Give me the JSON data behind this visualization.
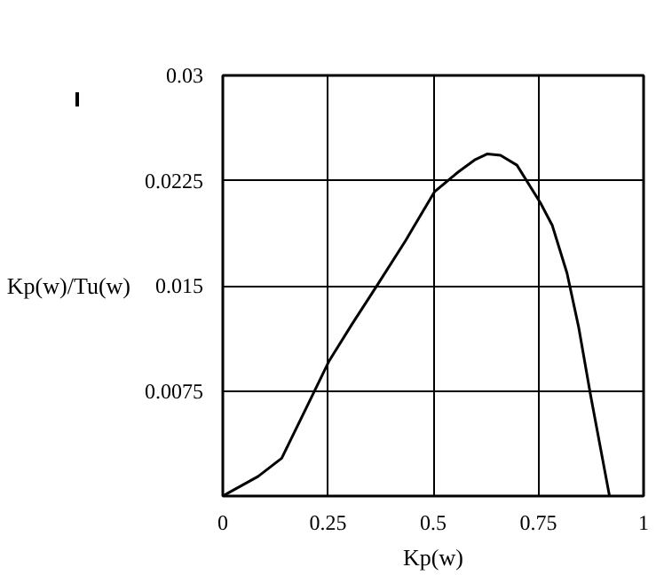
{
  "chart_data": {
    "type": "line",
    "xlabel": "Kp(w)",
    "ylabel": "Kp(w)/Tu(w)",
    "x": [
      0,
      0.084,
      0.14,
      0.21,
      0.252,
      0.308,
      0.364,
      0.434,
      0.503,
      0.559,
      0.6,
      0.629,
      0.66,
      0.699,
      0.755,
      0.783,
      0.818,
      0.846,
      0.874,
      0.919
    ],
    "series": [
      {
        "color": "#000000",
        "values": [
          0,
          0.0014,
          0.0027,
          0.007,
          0.0096,
          0.0123,
          0.0149,
          0.0182,
          0.0217,
          0.0231,
          0.024,
          0.0244,
          0.0243,
          0.0236,
          0.0209,
          0.0193,
          0.0159,
          0.012,
          0.0072,
          0
        ]
      }
    ],
    "xlim": [
      0,
      1
    ],
    "xticks": [
      0,
      0.25,
      0.5,
      0.75,
      1
    ],
    "ylim": [
      0,
      0.03
    ],
    "yticks": [
      0.0075,
      0.015,
      0.0225,
      0.03
    ],
    "grid": true,
    "line_style": "solid"
  }
}
